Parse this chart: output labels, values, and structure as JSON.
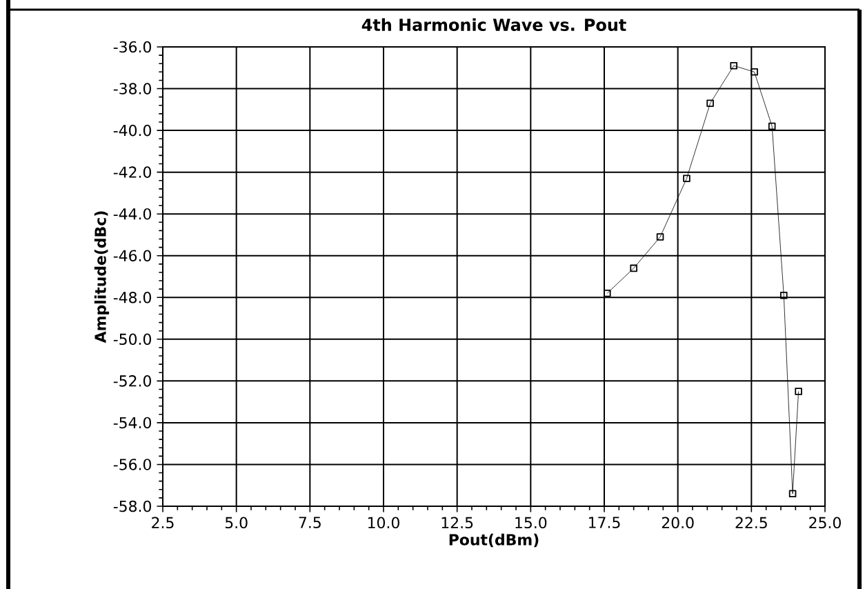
{
  "chart_data": {
    "type": "line",
    "title": "4th Harmonic Wave  vs. Pout",
    "xlabel": "Pout(dBm)",
    "ylabel": "Amplitude(dBc)",
    "x": [
      17.6,
      18.5,
      19.4,
      20.3,
      21.1,
      21.9,
      22.6,
      23.2,
      23.6,
      23.9,
      24.1
    ],
    "series": [
      {
        "color": "#000000",
        "values": [
          -47.8,
          -46.6,
          -45.1,
          -42.3,
          -38.7,
          -36.9,
          -37.2,
          -39.8,
          -47.9,
          -57.4,
          -52.5
        ]
      }
    ],
    "xlim": [
      2.5,
      25.0
    ],
    "ylim": [
      -58.0,
      -36.0
    ],
    "xticks": [
      {
        "value": 2.5,
        "label": "2.5"
      },
      {
        "value": 5.0,
        "label": "5.0"
      },
      {
        "value": 7.5,
        "label": "7.5"
      },
      {
        "value": 10.0,
        "label": "10.0"
      },
      {
        "value": 12.5,
        "label": "12.5"
      },
      {
        "value": 15.0,
        "label": "15.0"
      },
      {
        "value": 17.5,
        "label": "17.5"
      },
      {
        "value": 20.0,
        "label": "20.0"
      },
      {
        "value": 22.5,
        "label": "22.5"
      },
      {
        "value": 25.0,
        "label": "25.0"
      }
    ],
    "yticks": [
      {
        "value": -58.0,
        "label": "-58.0"
      },
      {
        "value": -56.0,
        "label": "-56.0"
      },
      {
        "value": -54.0,
        "label": "-54.0"
      },
      {
        "value": -52.0,
        "label": "-52.0"
      },
      {
        "value": -50.0,
        "label": "-50.0"
      },
      {
        "value": -48.0,
        "label": "-48.0"
      },
      {
        "value": -46.0,
        "label": "-46.0"
      },
      {
        "value": -44.0,
        "label": "-44.0"
      },
      {
        "value": -42.0,
        "label": "-42.0"
      },
      {
        "value": -40.0,
        "label": "-40.0"
      },
      {
        "value": -38.0,
        "label": "-38.0"
      },
      {
        "value": -36.0,
        "label": "-36.0"
      }
    ],
    "grid": true,
    "marker": "square",
    "line_style": "solid"
  }
}
